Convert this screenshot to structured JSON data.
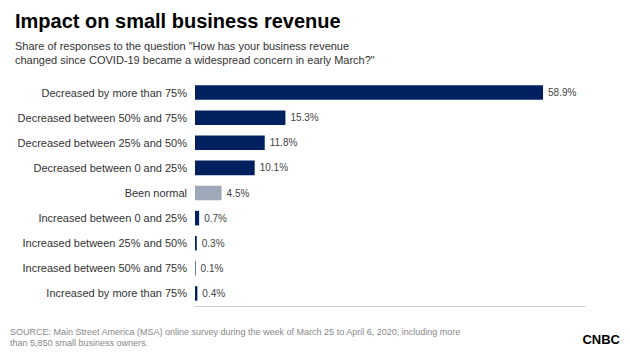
{
  "chart_data": {
    "type": "bar",
    "orientation": "horizontal",
    "title": "Impact on small business revenue",
    "subtitle": "Share of responses to the question \"How has your business revenue\nchanged since COVID-19 became a widespread concern in early March?\"",
    "annotations": [
      "SOURCE: Main Street America (MSA) online survey during the week of March 25 to April 6, 2020, including more\nthan 5,850 small business owners.",
      "CNBC"
    ],
    "categories": [
      "Decreased by more than 75%",
      "Decreased between 50% and 75%",
      "Decreased between 25% and 50%",
      "Decreased between 0 and 25%",
      "Been normal",
      "Increased between 0 and 25%",
      "Increased between 25% and 50%",
      "Increased between 50% and 75%",
      "Increased by more than 75%"
    ],
    "values": [
      58.9,
      15.3,
      11.8,
      10.1,
      4.5,
      0.7,
      0.3,
      0.1,
      0.4
    ],
    "value_labels": [
      "58.9%",
      "15.3%",
      "11.8%",
      "10.1%",
      "4.5%",
      "0.7%",
      "0.3%",
      "0.1%",
      "0.4%"
    ],
    "colors": [
      "#002060",
      "#002060",
      "#002060",
      "#002060",
      "#9ea8b8",
      "#002060",
      "#002060",
      "#002060",
      "#002060"
    ],
    "xlim": [
      0,
      66
    ],
    "data_labels": true,
    "tick_labels": "y",
    "grid": false
  }
}
